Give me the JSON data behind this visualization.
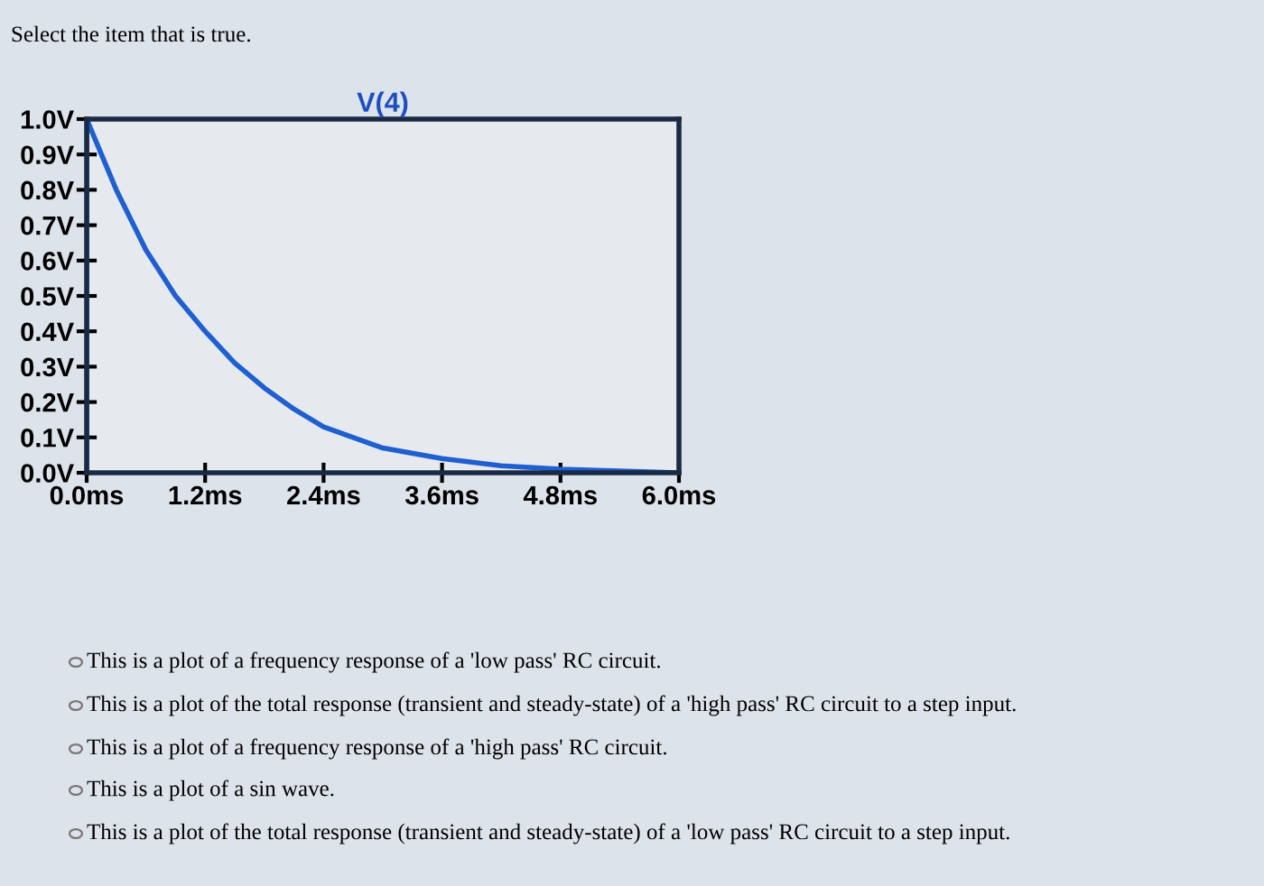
{
  "chart_data": {
    "type": "line",
    "title": "V(4)",
    "x": [
      0,
      0,
      0.3,
      0.6,
      0.9,
      1.2,
      1.5,
      1.8,
      2.1,
      2.4,
      2.7,
      3.0,
      3.6,
      4.2,
      4.8,
      5.4,
      6.0
    ],
    "series": [
      {
        "color": "#1f5fd0",
        "values": [
          0,
          1.0,
          0.8,
          0.63,
          0.5,
          0.4,
          0.31,
          0.24,
          0.18,
          0.13,
          0.1,
          0.07,
          0.04,
          0.02,
          0.01,
          0.005,
          0.0
        ]
      }
    ],
    "xlim": [
      0,
      6
    ],
    "xticks": [
      {
        "value": 0,
        "label": "0.0ms"
      },
      {
        "value": 1.2,
        "label": "1.2ms"
      },
      {
        "value": 2.4,
        "label": "2.4ms"
      },
      {
        "value": 3.6,
        "label": "3.6ms"
      },
      {
        "value": 4.8,
        "label": "4.8ms"
      },
      {
        "value": 6.0,
        "label": "6.0ms"
      }
    ],
    "ylim": [
      0,
      1
    ],
    "yticks": [
      {
        "value": 0,
        "label": "0.0V"
      },
      {
        "value": 0.1,
        "label": "0.1V"
      },
      {
        "value": 0.2,
        "label": "0.2V"
      },
      {
        "value": 0.3,
        "label": "0.3V"
      },
      {
        "value": 0.4,
        "label": "0.4V"
      },
      {
        "value": 0.5,
        "label": "0.5V"
      },
      {
        "value": 0.6,
        "label": "0.6V"
      },
      {
        "value": 0.7,
        "label": "0.7V"
      },
      {
        "value": 0.8,
        "label": "0.8V"
      },
      {
        "value": 0.9,
        "label": "0.9V"
      },
      {
        "value": 1.0,
        "label": "1.0V"
      }
    ],
    "grid": false,
    "annotations": [
      "Select the item that is true.",
      "This is a plot of a frequency response of a 'low pass' RC circuit.",
      "This is a plot of the total response (transient and steady-state) of a 'high pass' RC circuit to a step input.",
      "This is a plot of a frequency response of a 'high pass' RC circuit.",
      "This is a plot of a sin wave.",
      "This is a plot of the total response (transient and steady-state) of a 'low pass' RC circuit to a step input."
    ]
  }
}
